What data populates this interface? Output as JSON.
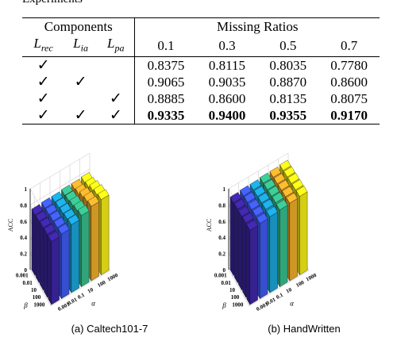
{
  "fragment_text": "Experiments",
  "table": {
    "components_header": "Components",
    "missing_header": "Missing Ratios",
    "component_labels": [
      {
        "base": "L",
        "sub": "rec"
      },
      {
        "base": "L",
        "sub": "ia"
      },
      {
        "base": "L",
        "sub": "pa"
      }
    ],
    "ratios": [
      "0.1",
      "0.3",
      "0.5",
      "0.7"
    ],
    "check_mark": "✓",
    "rows": [
      {
        "checks": [
          true,
          false,
          false
        ],
        "values": [
          "0.8375",
          "0.8115",
          "0.8035",
          "0.7780"
        ],
        "bold": false
      },
      {
        "checks": [
          true,
          true,
          false
        ],
        "values": [
          "0.9065",
          "0.9035",
          "0.8870",
          "0.8600"
        ],
        "bold": false
      },
      {
        "checks": [
          true,
          false,
          true
        ],
        "values": [
          "0.8885",
          "0.8600",
          "0.8135",
          "0.8075"
        ],
        "bold": false
      },
      {
        "checks": [
          true,
          true,
          true
        ],
        "values": [
          "0.9335",
          "0.9400",
          "0.9355",
          "0.9170"
        ],
        "bold": true
      }
    ]
  },
  "chart_data": [
    {
      "type": "bar3d",
      "caption": "(a) Caltech101-7",
      "zlabel": "ACC",
      "xlabel": "α",
      "ylabel": "β",
      "zticks": [
        "0",
        "0.2",
        "0.4",
        "0.6",
        "0.8",
        "1"
      ],
      "zlim": [
        0,
        1
      ],
      "alpha_values": [
        "0.001",
        "0.01",
        "0.1",
        "10",
        "100",
        "1000"
      ],
      "beta_values": [
        "0.001",
        "0.01",
        "10",
        "100",
        "1000"
      ],
      "values": [
        [
          0.75,
          0.76,
          0.76,
          0.77,
          0.77,
          0.78
        ],
        [
          0.76,
          0.77,
          0.78,
          0.79,
          0.8,
          0.81
        ],
        [
          0.77,
          0.78,
          0.8,
          0.82,
          0.85,
          0.86
        ],
        [
          0.78,
          0.79,
          0.82,
          0.85,
          0.89,
          0.9
        ],
        [
          0.78,
          0.8,
          0.84,
          0.88,
          0.92,
          0.93
        ]
      ]
    },
    {
      "type": "bar3d",
      "caption": "(b) HandWritten",
      "zlabel": "ACC",
      "xlabel": "α",
      "ylabel": "β",
      "zticks": [
        "0",
        "0.2",
        "0.4",
        "0.6",
        "0.8",
        "1"
      ],
      "zlim": [
        0,
        1
      ],
      "alpha_values": [
        "0.001",
        "0.01",
        "0.1",
        "10",
        "100",
        "1000"
      ],
      "beta_values": [
        "0.001",
        "0.01",
        "10",
        "100",
        "1000"
      ],
      "values": [
        [
          0.9,
          0.91,
          0.91,
          0.92,
          0.92,
          0.93
        ],
        [
          0.91,
          0.92,
          0.92,
          0.93,
          0.93,
          0.94
        ],
        [
          0.91,
          0.92,
          0.93,
          0.94,
          0.94,
          0.95
        ],
        [
          0.92,
          0.93,
          0.94,
          0.95,
          0.95,
          0.96
        ],
        [
          0.92,
          0.93,
          0.94,
          0.95,
          0.96,
          0.97
        ]
      ]
    }
  ],
  "colors": {
    "bars": [
      "#3e26a8",
      "#3f5cf2",
      "#1ba7dd",
      "#38c08e",
      "#f0b02a",
      "#f9f016"
    ],
    "grid": "#d6d6d6",
    "axis": "#000000"
  }
}
